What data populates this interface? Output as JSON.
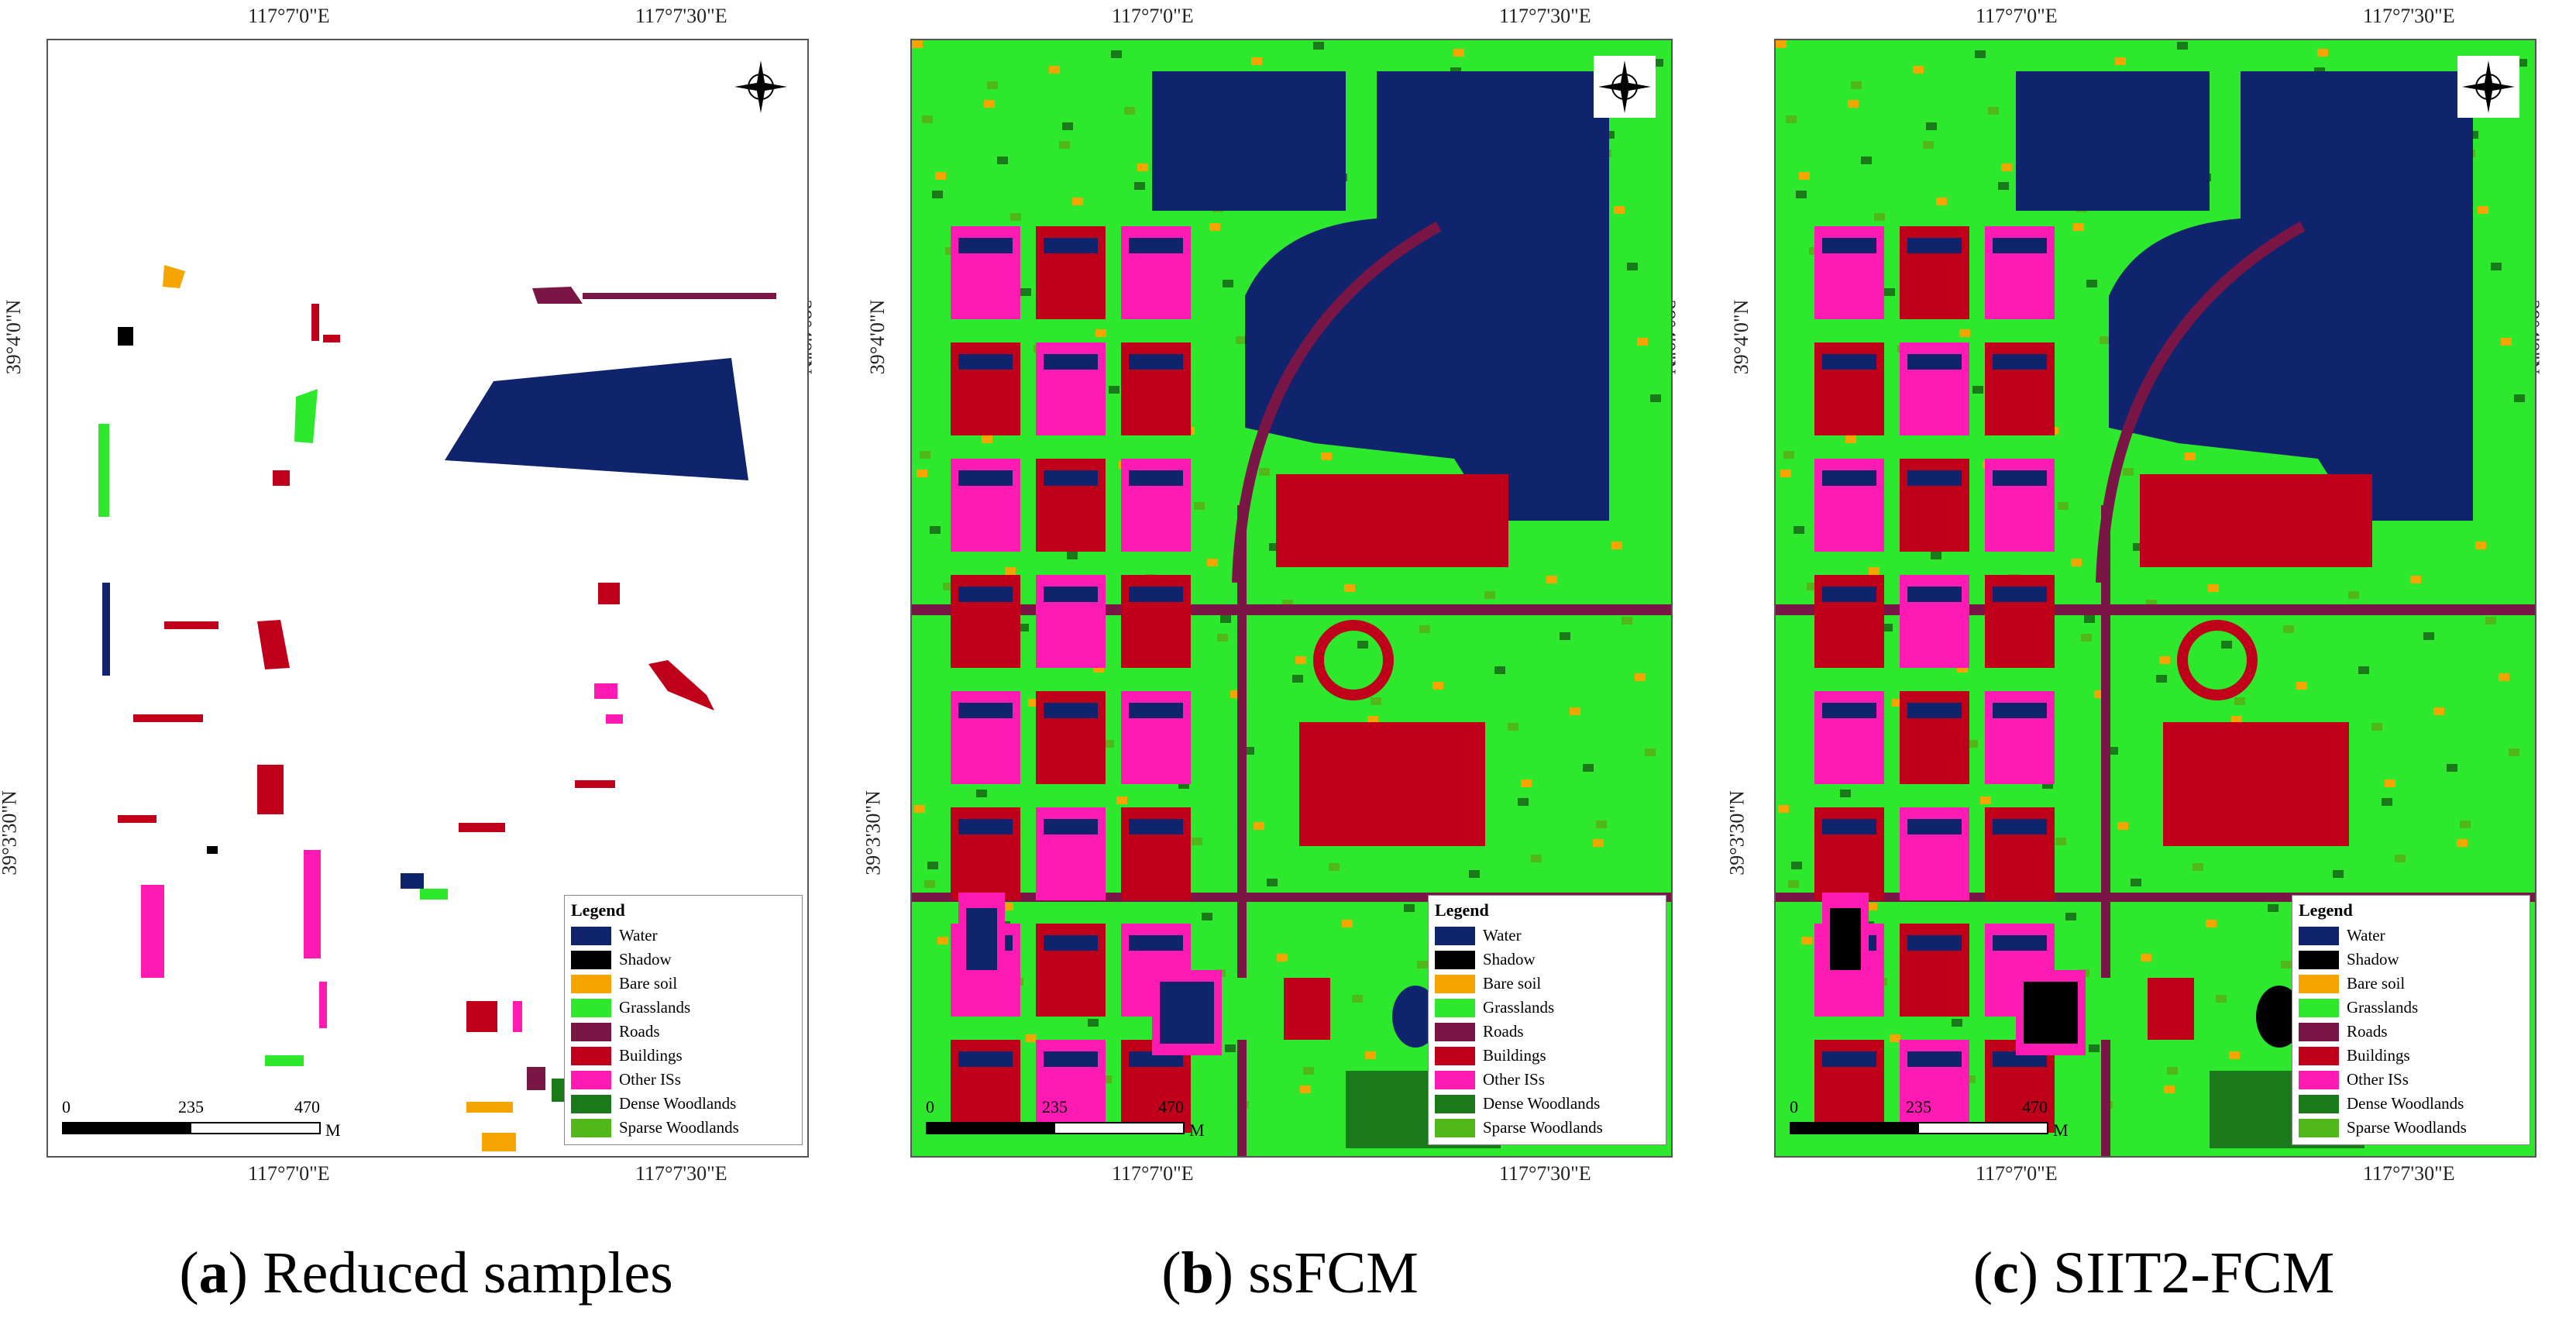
{
  "colors": {
    "water": "#10246e",
    "shadow": "#000000",
    "bare_soil": "#f5a400",
    "grasslands": "#2ee82e",
    "roads": "#7a1646",
    "buildings": "#c0001a",
    "other_isa": "#ff1ab4",
    "dense_woodlands": "#1a7a1a",
    "sparse_woodlands": "#50b81a"
  },
  "coords": {
    "lon_left": "117°7'0\"E",
    "lon_right": "117°7'30\"E",
    "lat_top": "39°4'0\"N",
    "lat_bottom": "39°3'30\"N"
  },
  "scale": {
    "zero": "0",
    "mid": "235",
    "max": "470",
    "unit": "M"
  },
  "legend": {
    "title": "Legend",
    "items": [
      "Water",
      "Shadow",
      "Bare soil",
      "Grasslands",
      "Roads",
      "Buildings",
      "Other ISs",
      "Dense Woodlands",
      "Sparse Woodlands"
    ]
  },
  "panels": [
    {
      "letter": "a",
      "caption": "Reduced samples"
    },
    {
      "letter": "b",
      "caption": "ssFCM"
    },
    {
      "letter": "c",
      "caption": "SIIT2-FCM"
    }
  ],
  "compass_icon": "north-arrow-icon"
}
